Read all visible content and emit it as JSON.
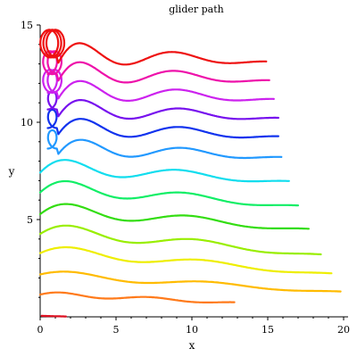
{
  "chart_data": {
    "type": "line",
    "title": "glider path",
    "xlabel": "x",
    "ylabel": "y",
    "xlim": [
      0,
      20
    ],
    "ylim": [
      0,
      15
    ],
    "xticks": [
      0,
      5,
      10,
      15,
      20
    ],
    "yticks": [
      5,
      10,
      15
    ],
    "xtick_labels": [
      "0",
      "5",
      "10",
      "15",
      "20"
    ],
    "ytick_labels": [
      "5",
      "10",
      "15"
    ],
    "grid": false,
    "legend": "none",
    "series": [
      {
        "color": "#dd1122",
        "start": [
          0.1,
          0.05
        ],
        "lift": 0.0,
        "length": 1.6,
        "decay": 0.0,
        "peak": 0.0,
        "loops": 0,
        "descent": 0.0
      },
      {
        "color": "#ff7a1a",
        "start": [
          0.0,
          1.1
        ],
        "lift": 0.25,
        "length": 12.8,
        "decay": 1.1,
        "peak": 0.25,
        "loops": 0,
        "descent": 0.04
      },
      {
        "color": "#ffbb00",
        "start": [
          0.0,
          2.1
        ],
        "lift": 0.3,
        "length": 19.8,
        "decay": 1.6,
        "peak": 0.45,
        "loops": 0,
        "descent": 0.05
      },
      {
        "color": "#eeee00",
        "start": [
          0.0,
          3.15
        ],
        "lift": 0.75,
        "length": 19.2,
        "decay": 1.8,
        "peak": 0.7,
        "loops": 0,
        "descent": 0.07
      },
      {
        "color": "#99ee00",
        "start": [
          0.0,
          4.1
        ],
        "lift": 1.05,
        "length": 18.5,
        "decay": 1.9,
        "peak": 0.9,
        "loops": 0,
        "descent": 0.08
      },
      {
        "color": "#33dd11",
        "start": [
          0.0,
          5.1
        ],
        "lift": 1.2,
        "length": 17.7,
        "decay": 2.0,
        "peak": 1.0,
        "loops": 0,
        "descent": 0.07
      },
      {
        "color": "#11ee66",
        "start": [
          0.0,
          6.2
        ],
        "lift": 1.3,
        "length": 17.0,
        "decay": 2.1,
        "peak": 1.1,
        "loops": 0,
        "descent": 0.07
      },
      {
        "color": "#11ddee",
        "start": [
          0.0,
          7.2
        ],
        "lift": 1.4,
        "length": 16.4,
        "decay": 2.2,
        "peak": 1.2,
        "loops": 0,
        "descent": 0.06
      },
      {
        "color": "#2299ff",
        "start": [
          0.0,
          8.2
        ],
        "lift": 1.5,
        "length": 15.9,
        "decay": 2.3,
        "peak": 1.3,
        "loops": 1,
        "descent": 0.05
      },
      {
        "color": "#1133ee",
        "start": [
          0.0,
          9.2
        ],
        "lift": 1.6,
        "length": 15.7,
        "decay": 2.3,
        "peak": 1.4,
        "loops": 1,
        "descent": 0.05
      },
      {
        "color": "#7711ee",
        "start": [
          0.0,
          10.1
        ],
        "lift": 1.7,
        "length": 15.7,
        "decay": 2.4,
        "peak": 1.5,
        "loops": 1,
        "descent": 0.05
      },
      {
        "color": "#cc22ee",
        "start": [
          0.0,
          11.0
        ],
        "lift": 1.8,
        "length": 15.4,
        "decay": 2.4,
        "peak": 1.6,
        "loops": 2,
        "descent": 0.05
      },
      {
        "color": "#ee11aa",
        "start": [
          0.0,
          11.9
        ],
        "lift": 1.9,
        "length": 15.1,
        "decay": 2.5,
        "peak": 1.7,
        "loops": 2,
        "descent": 0.05
      },
      {
        "color": "#ee1111",
        "start": [
          0.0,
          12.8
        ],
        "lift": 2.0,
        "length": 14.9,
        "decay": 2.5,
        "peak": 1.8,
        "loops": 3,
        "descent": 0.05
      }
    ]
  }
}
